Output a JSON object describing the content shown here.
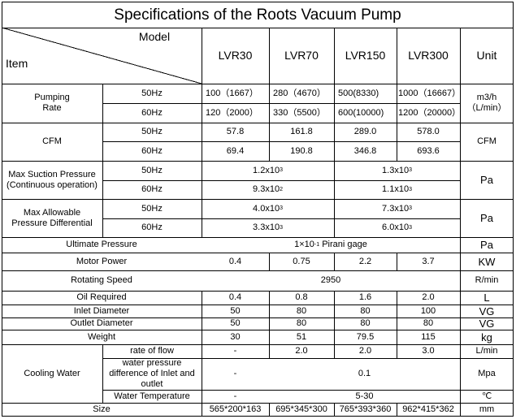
{
  "title": "Specifications of the Roots Vacuum Pump",
  "header": {
    "model_label": "Model",
    "item_label": "Item",
    "models": [
      "LVR30",
      "LVR70",
      "LVR150",
      "LVR300"
    ],
    "unit_label": "Unit"
  },
  "pumping_rate": {
    "label": "Pumping\nRate",
    "hz50": "50Hz",
    "hz60": "60Hz",
    "values50": [
      "100（1667）",
      "280（4670）",
      "500(8330)",
      "1000（16667）"
    ],
    "values60": [
      "120（2000）",
      "330（5500）",
      "600(10000)",
      "1200（20000）"
    ],
    "unit": "m3/h\n（L/min）"
  },
  "cfm": {
    "label": "CFM",
    "hz50": "50Hz",
    "hz60": "60Hz",
    "values50": [
      "57.8",
      "161.8",
      "289.0",
      "578.0"
    ],
    "values60": [
      "69.4",
      "190.8",
      "346.8",
      "693.6"
    ],
    "unit": "CFM"
  },
  "max_suction": {
    "label": "Max Suction Pressure\n(Continuous operation)",
    "hz50": "50Hz",
    "hz60": "60Hz",
    "r50a_mant": "1.2x10",
    "r50a_exp": "3",
    "r50b_mant": "1.3x10",
    "r50b_exp": "3",
    "r60a_mant": "9.3x10",
    "r60a_exp": "2",
    "r60b_mant": "1.1x10",
    "r60b_exp": "3",
    "unit": "Pa"
  },
  "max_diff": {
    "label": "Max Allowable\nPressure Differential",
    "hz50": "50Hz",
    "hz60": "60Hz",
    "r50a_mant": "4.0x10",
    "r50a_exp": "3",
    "r50b_mant": "7.3x10",
    "r50b_exp": "3",
    "r60a_mant": "3.3x10",
    "r60a_exp": "3",
    "r60b_mant": "6.0x10",
    "r60b_exp": "3",
    "unit": "Pa"
  },
  "ultimate": {
    "label": "Ultimate Pressure",
    "mant": "1×10",
    "exp": "-1",
    "suffix": " Pirani gage",
    "unit": "Pa"
  },
  "motor": {
    "label": "Motor Power",
    "values": [
      "0.4",
      "0.75",
      "2.2",
      "3.7"
    ],
    "unit": "KW"
  },
  "rotating": {
    "label": "Rotating Speed",
    "value": "2950",
    "unit": "R/min"
  },
  "oil": {
    "label": "Oil Required",
    "values": [
      "0.4",
      "0.8",
      "1.6",
      "2.0"
    ],
    "unit": "L"
  },
  "inlet": {
    "label": "Inlet Diameter",
    "values": [
      "50",
      "80",
      "80",
      "100"
    ],
    "unit": "VG"
  },
  "outlet": {
    "label": "Outlet Diameter",
    "values": [
      "50",
      "80",
      "80",
      "80"
    ],
    "unit": "VG"
  },
  "weight": {
    "label": "Weight",
    "values": [
      "30",
      "51",
      "79.5",
      "115"
    ],
    "unit": "kg"
  },
  "cooling": {
    "label": "Cooling Water",
    "flow": {
      "label": "rate of flow",
      "values": [
        "-",
        "2.0",
        "2.0",
        "3.0"
      ],
      "unit": "L/min"
    },
    "pressure": {
      "label": "water pressure\ndifference of Inlet and\noutlet",
      "first": "-",
      "value": "0.1",
      "unit": "Mpa"
    },
    "temp": {
      "label": "Water Temperature",
      "first": "-",
      "value": "5-30",
      "unit": "℃"
    }
  },
  "size": {
    "label": "Size",
    "values": [
      "565*200*163",
      "695*345*300",
      "765*393*360",
      "962*415*362"
    ],
    "unit": "mm"
  }
}
